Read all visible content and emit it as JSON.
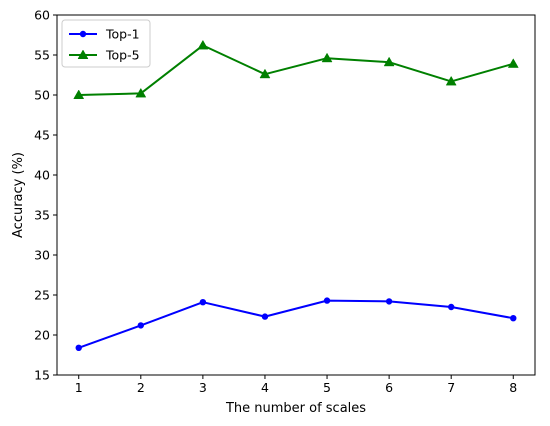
{
  "chart_data": {
    "type": "line",
    "xlabel": "The number of scales",
    "ylabel": "Accuracy (%)",
    "x": [
      1,
      2,
      3,
      4,
      5,
      6,
      7,
      8
    ],
    "xticks": [
      "1",
      "2",
      "3",
      "4",
      "5",
      "6",
      "7",
      "8"
    ],
    "ylim": [
      15,
      60
    ],
    "yticks": [
      "15",
      "20",
      "25",
      "30",
      "35",
      "40",
      "45",
      "50",
      "55",
      "60"
    ],
    "grid": false,
    "legend_position": "top-left",
    "series": [
      {
        "name": "Top-1",
        "color": "#0000ff",
        "marker": "circle",
        "values": [
          18.4,
          21.2,
          24.1,
          22.3,
          24.3,
          24.2,
          23.5,
          22.1
        ]
      },
      {
        "name": "Top-5",
        "color": "#008000",
        "marker": "triangle",
        "values": [
          50.0,
          50.2,
          56.2,
          52.6,
          54.6,
          54.1,
          51.7,
          53.9
        ]
      }
    ]
  }
}
